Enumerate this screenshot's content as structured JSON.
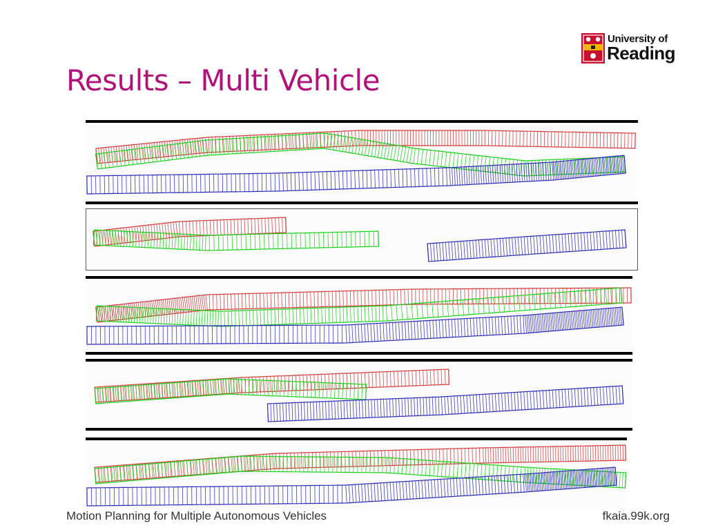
{
  "slide": {
    "title": "Results – Multi Vehicle",
    "footer_left": "Motion Planning for Multiple Autonomous Vehicles",
    "footer_right": "fkaia.99k.org"
  },
  "logo": {
    "line1": "University of",
    "line2": "Reading",
    "shield_colors": {
      "red": "#c8102e",
      "gold": "#f2b705",
      "dark": "#231f20"
    }
  },
  "colors": {
    "title": "#b0127a",
    "vehicle_red": "#d43a3a",
    "vehicle_green": "#18d018",
    "vehicle_blue": "#2a2ab8",
    "rule": "#000000"
  },
  "figure": {
    "description_icon": "trajectory-panels",
    "panel_count": 5,
    "legend": []
  }
}
